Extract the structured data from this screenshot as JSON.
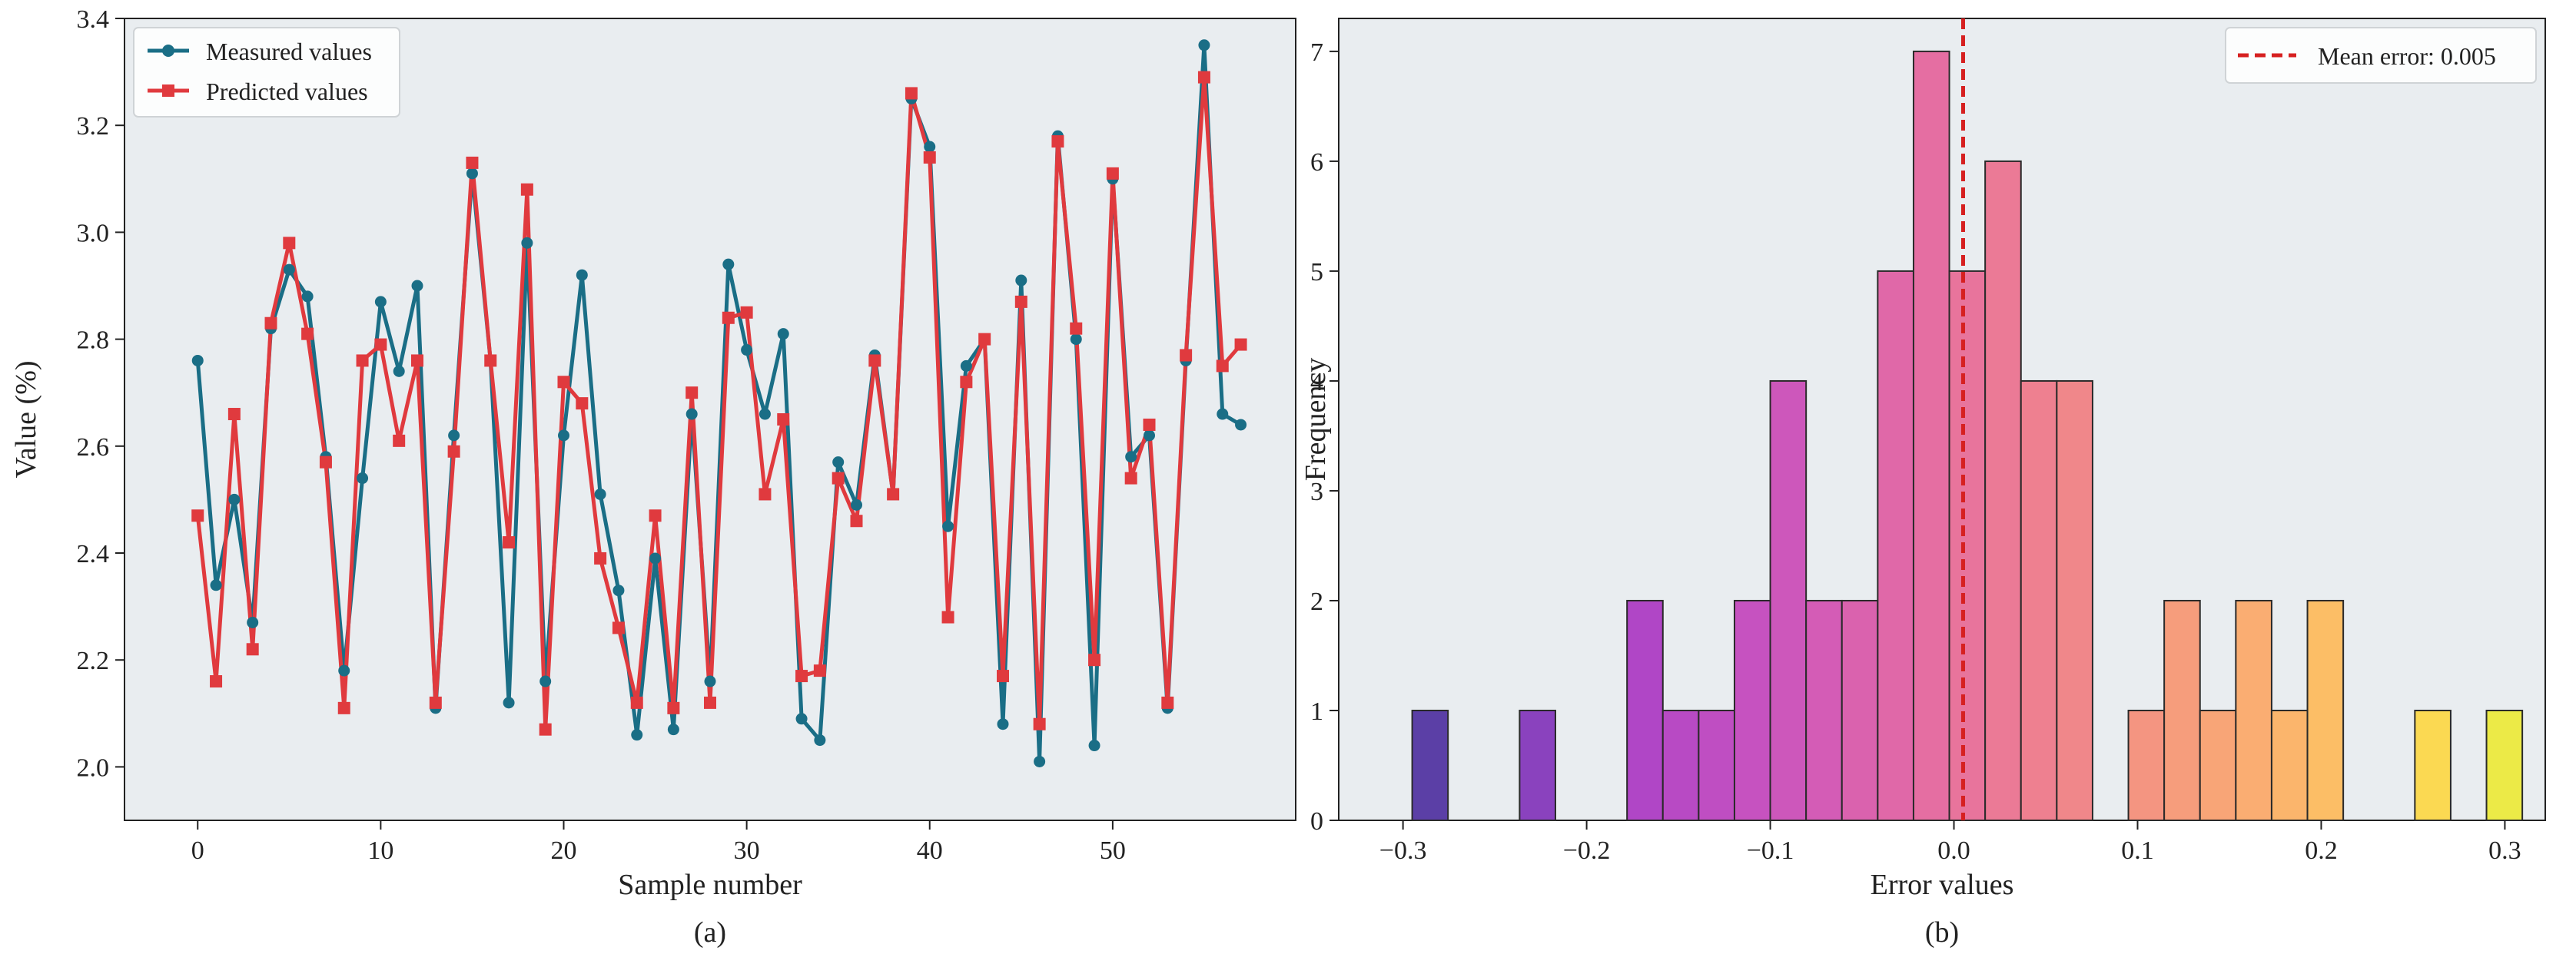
{
  "chart_data": [
    {
      "type": "line",
      "caption": "(a)",
      "xlabel": "Sample number",
      "ylabel": "Value (%)",
      "xlim": [
        -4,
        60
      ],
      "ylim": [
        1.9,
        3.4
      ],
      "xticks": [
        0,
        10,
        20,
        30,
        40,
        50
      ],
      "yticks": [
        2.0,
        2.2,
        2.4,
        2.6,
        2.8,
        3.0,
        3.2,
        3.4
      ],
      "xtick_labels": [
        "0",
        "10",
        "20",
        "30",
        "40",
        "50"
      ],
      "ytick_labels": [
        "2.0",
        "2.2",
        "2.4",
        "2.6",
        "2.8",
        "3.0",
        "3.2",
        "3.4"
      ],
      "grid": false,
      "legend": "top-left",
      "background": "#e9edf0",
      "series": [
        {
          "name": "Measured values",
          "color": "#1a6e86",
          "marker": "circle",
          "x": [
            0,
            1,
            2,
            3,
            4,
            5,
            6,
            7,
            8,
            9,
            10,
            11,
            12,
            13,
            14,
            15,
            16,
            17,
            18,
            19,
            20,
            21,
            22,
            23,
            24,
            25,
            26,
            27,
            28,
            29,
            30,
            31,
            32,
            33,
            34,
            35,
            36,
            37,
            38,
            39,
            40,
            41,
            42,
            43,
            44,
            45,
            46,
            47,
            48,
            49,
            50,
            51,
            52,
            53,
            54,
            55,
            56,
            57
          ],
          "values": [
            2.76,
            2.34,
            2.5,
            2.27,
            2.82,
            2.93,
            2.88,
            2.58,
            2.18,
            2.54,
            2.87,
            2.74,
            2.9,
            2.11,
            2.62,
            3.11,
            2.76,
            2.12,
            2.98,
            2.16,
            2.62,
            2.92,
            2.51,
            2.33,
            2.06,
            2.39,
            2.07,
            2.66,
            2.16,
            2.94,
            2.78,
            2.66,
            2.81,
            2.09,
            2.05,
            2.57,
            2.49,
            2.77,
            2.51,
            3.25,
            3.16,
            2.45,
            2.75,
            2.8,
            2.08,
            2.91,
            2.01,
            3.18,
            2.8,
            2.04,
            3.1,
            2.58,
            2.62,
            2.11,
            2.76,
            3.35,
            2.66,
            2.64
          ]
        },
        {
          "name": "Predicted values",
          "color": "#e03a3e",
          "marker": "square",
          "x": [
            0,
            1,
            2,
            3,
            4,
            5,
            6,
            7,
            8,
            9,
            10,
            11,
            12,
            13,
            14,
            15,
            16,
            17,
            18,
            19,
            20,
            21,
            22,
            23,
            24,
            25,
            26,
            27,
            28,
            29,
            30,
            31,
            32,
            33,
            34,
            35,
            36,
            37,
            38,
            39,
            40,
            41,
            42,
            43,
            44,
            45,
            46,
            47,
            48,
            49,
            50,
            51,
            52,
            53,
            54,
            55,
            56,
            57
          ],
          "values": [
            2.47,
            2.16,
            2.66,
            2.22,
            2.83,
            2.98,
            2.81,
            2.57,
            2.11,
            2.76,
            2.79,
            2.61,
            2.76,
            2.12,
            2.59,
            3.13,
            2.76,
            2.42,
            3.08,
            2.07,
            2.72,
            2.68,
            2.39,
            2.26,
            2.12,
            2.47,
            2.11,
            2.7,
            2.12,
            2.84,
            2.85,
            2.51,
            2.65,
            2.17,
            2.18,
            2.54,
            2.46,
            2.76,
            2.51,
            3.26,
            3.14,
            2.28,
            2.72,
            2.8,
            2.17,
            2.87,
            2.08,
            3.17,
            2.82,
            2.2,
            3.11,
            2.54,
            2.64,
            2.12,
            2.77,
            3.29,
            2.75,
            2.79
          ]
        }
      ]
    },
    {
      "type": "bar",
      "caption": "(b)",
      "subtype": "histogram",
      "xlabel": "Error values",
      "ylabel": "Frequency",
      "xlim": [
        -0.335,
        0.322
      ],
      "ylim": [
        0,
        7.3
      ],
      "xticks": [
        -0.3,
        -0.2,
        -0.1,
        0.0,
        0.1,
        0.2,
        0.3
      ],
      "yticks": [
        0,
        1,
        2,
        3,
        4,
        5,
        6,
        7
      ],
      "xtick_labels": [
        "−0.3",
        "−0.2",
        "−0.1",
        "0.0",
        "0.1",
        "0.2",
        "0.3"
      ],
      "ytick_labels": [
        "0",
        "1",
        "2",
        "3",
        "4",
        "5",
        "6",
        "7"
      ],
      "grid": false,
      "legend": "top-right",
      "background": "#e9edf0",
      "bin_start": -0.295,
      "bin_width": 0.0195,
      "values": [
        1,
        0,
        0,
        1,
        0,
        0,
        2,
        1,
        1,
        2,
        4,
        2,
        2,
        5,
        7,
        5,
        6,
        4,
        4,
        0,
        1,
        2,
        1,
        2,
        1,
        2,
        0,
        0,
        1,
        0,
        1
      ],
      "colors": [
        "#5b3fa6",
        "#6a3fb0",
        "#7a3fb8",
        "#8a42be",
        "#9a44c2",
        "#a945c4",
        "#b046c6",
        "#b84ac4",
        "#bf4ec2",
        "#c652c0",
        "#cd57bb",
        "#d45cb6",
        "#da62ae",
        "#e068a8",
        "#e56ea2",
        "#e8749c",
        "#eb7a96",
        "#ee8090",
        "#f0878a",
        "#f28e86",
        "#f49581",
        "#f69d7c",
        "#f8a577",
        "#faad72",
        "#fbb56c",
        "#fcbe66",
        "#fdc760",
        "#fdd05a",
        "#fbd952",
        "#f5e24a",
        "#ecea47"
      ],
      "mean_line": {
        "value": 0.005,
        "label": "Mean error: 0.005",
        "color": "#d62020"
      }
    }
  ]
}
